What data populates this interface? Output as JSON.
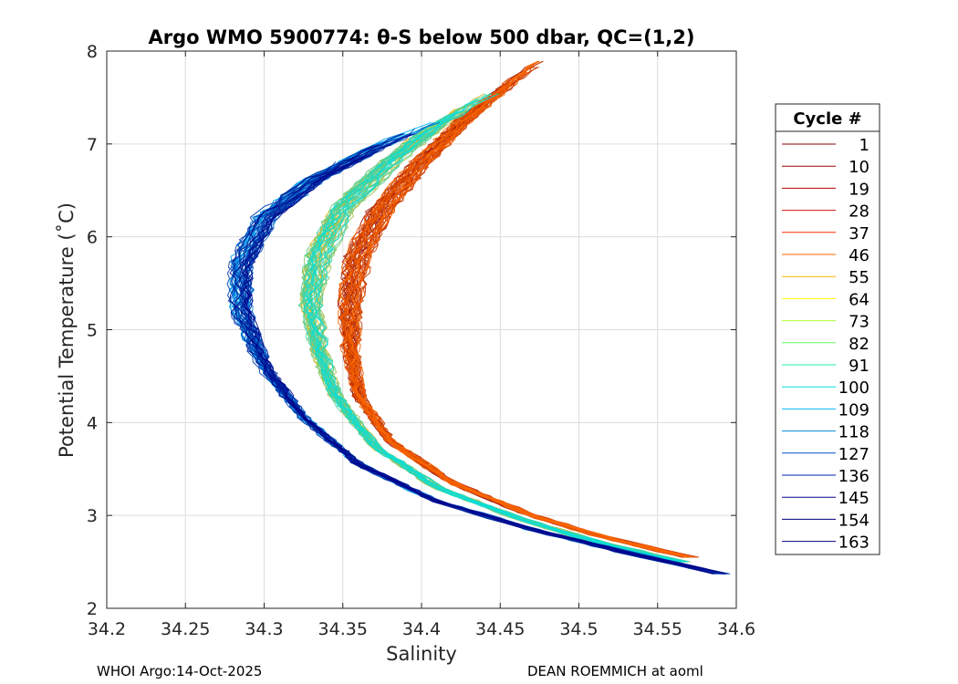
{
  "chart_data": {
    "type": "line",
    "title": "Argo WMO 5900774: θ-S below 500 dbar,  QC=(1,2)",
    "xlabel": "Salinity",
    "ylabel": "Potential Temperature (˚C)",
    "xlim": [
      34.2,
      34.6
    ],
    "ylim": [
      2,
      8
    ],
    "xticks": [
      34.2,
      34.25,
      34.3,
      34.35,
      34.4,
      34.45,
      34.5,
      34.55,
      34.6
    ],
    "xtick_labels": [
      "34.2",
      "34.25",
      "34.3",
      "34.35",
      "34.4",
      "34.45",
      "34.5",
      "34.55",
      "34.6"
    ],
    "yticks": [
      2,
      3,
      4,
      5,
      6,
      7,
      8
    ],
    "ytick_labels": [
      "2",
      "3",
      "4",
      "5",
      "6",
      "7",
      "8"
    ],
    "grid": true,
    "legend": {
      "title": "Cycle #",
      "placement": "right",
      "entries": [
        {
          "label": "1",
          "color": "#8b0000"
        },
        {
          "label": "10",
          "color": "#a00000"
        },
        {
          "label": "19",
          "color": "#b80000"
        },
        {
          "label": "28",
          "color": "#d01010"
        },
        {
          "label": "37",
          "color": "#ff2a00"
        },
        {
          "label": "46",
          "color": "#ff6a00"
        },
        {
          "label": "55",
          "color": "#ffb000"
        },
        {
          "label": "64",
          "color": "#ffff00"
        },
        {
          "label": "73",
          "color": "#b0ff30"
        },
        {
          "label": "82",
          "color": "#60ff60"
        },
        {
          "label": "91",
          "color": "#20f0a0"
        },
        {
          "label": "100",
          "color": "#00e0e0"
        },
        {
          "label": "109",
          "color": "#00b8ff"
        },
        {
          "label": "118",
          "color": "#0088d8"
        },
        {
          "label": "127",
          "color": "#0050d0"
        },
        {
          "label": "136",
          "color": "#0020b0"
        },
        {
          "label": "145",
          "color": "#000090"
        },
        {
          "label": "154",
          "color": "#00007a"
        },
        {
          "label": "163",
          "color": "#000088"
        }
      ]
    },
    "series_shape": {
      "description": "θ-S profiles forming a C-shaped curve; salinity minimum near θ≈5.4",
      "groups": [
        {
          "name": "cycles 1-46",
          "color_range": [
            "#8b0000",
            "#ff6a00"
          ],
          "points": [
            [
              34.57,
              2.55
            ],
            [
              34.52,
              2.75
            ],
            [
              34.47,
              3.0
            ],
            [
              34.42,
              3.35
            ],
            [
              34.38,
              3.8
            ],
            [
              34.36,
              4.3
            ],
            [
              34.355,
              4.8
            ],
            [
              34.355,
              5.3
            ],
            [
              34.36,
              5.8
            ],
            [
              34.375,
              6.3
            ],
            [
              34.4,
              6.8
            ],
            [
              34.43,
              7.3
            ],
            [
              34.46,
              7.7
            ],
            [
              34.48,
              7.95
            ]
          ]
        },
        {
          "name": "cycles 55-100",
          "color_range": [
            "#ffb000",
            "#00e0e0"
          ],
          "points": [
            [
              34.565,
              2.5
            ],
            [
              34.51,
              2.72
            ],
            [
              34.46,
              2.98
            ],
            [
              34.41,
              3.3
            ],
            [
              34.37,
              3.75
            ],
            [
              34.345,
              4.3
            ],
            [
              34.335,
              4.8
            ],
            [
              34.33,
              5.3
            ],
            [
              34.335,
              5.8
            ],
            [
              34.35,
              6.3
            ],
            [
              34.38,
              6.8
            ],
            [
              34.41,
              7.2
            ],
            [
              34.45,
              7.6
            ]
          ]
        },
        {
          "name": "cycles 109-163",
          "color_range": [
            "#00b8ff",
            "#000088"
          ],
          "points": [
            [
              34.59,
              2.37
            ],
            [
              34.53,
              2.6
            ],
            [
              34.47,
              2.85
            ],
            [
              34.41,
              3.15
            ],
            [
              34.36,
              3.55
            ],
            [
              34.325,
              4.05
            ],
            [
              34.3,
              4.6
            ],
            [
              34.285,
              5.2
            ],
            [
              34.285,
              5.7
            ],
            [
              34.3,
              6.2
            ],
            [
              34.33,
              6.6
            ],
            [
              34.37,
              6.95
            ],
            [
              34.41,
              7.25
            ]
          ]
        }
      ]
    }
  },
  "footer": {
    "left": "WHOI Argo:14-Oct-2025",
    "right": "DEAN ROEMMICH at aoml"
  }
}
